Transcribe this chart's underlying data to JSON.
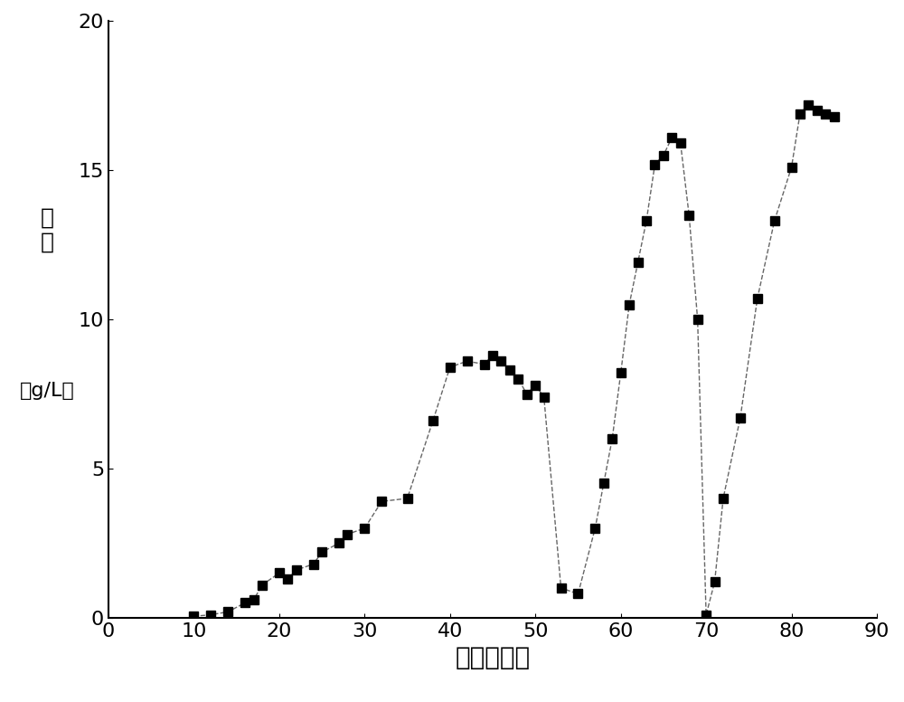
{
  "x": [
    10,
    12,
    14,
    16,
    17,
    18,
    20,
    21,
    22,
    24,
    25,
    27,
    28,
    30,
    32,
    35,
    38,
    40,
    42,
    44,
    45,
    46,
    47,
    48,
    49,
    50,
    51,
    53,
    55,
    57,
    58,
    59,
    60,
    61,
    62,
    63,
    64,
    65,
    66,
    67,
    68,
    69,
    70,
    71,
    72,
    74,
    76,
    78,
    80,
    81,
    82,
    83,
    84,
    85
  ],
  "y": [
    0.05,
    0.1,
    0.2,
    0.5,
    0.6,
    1.1,
    1.5,
    1.3,
    1.6,
    1.8,
    2.2,
    2.5,
    2.8,
    3.0,
    3.9,
    4.0,
    6.6,
    8.4,
    8.6,
    8.5,
    8.8,
    8.6,
    8.3,
    8.0,
    7.5,
    7.8,
    7.4,
    1.0,
    0.8,
    3.0,
    4.5,
    6.0,
    8.2,
    10.5,
    11.9,
    13.3,
    15.2,
    15.5,
    16.1,
    15.9,
    13.5,
    10.0,
    0.1,
    1.2,
    4.0,
    6.7,
    10.7,
    13.3,
    15.1,
    16.9,
    17.2,
    17.0,
    16.9,
    16.8
  ],
  "xlabel": "时间（天）",
  "ylabel_top": "浓\n度",
  "ylabel_bottom": "（g/L）",
  "xlim": [
    0,
    90
  ],
  "ylim": [
    0,
    20
  ],
  "xticks": [
    0,
    10,
    20,
    30,
    40,
    50,
    60,
    70,
    80,
    90
  ],
  "yticks": [
    0,
    5,
    10,
    15,
    20
  ],
  "marker_color": "#000000",
  "line_color": "#666666",
  "marker_size": 7,
  "line_width": 1.0,
  "background_color": "#ffffff",
  "xlabel_fontsize": 20,
  "ylabel_fontsize": 18,
  "tick_fontsize": 16
}
